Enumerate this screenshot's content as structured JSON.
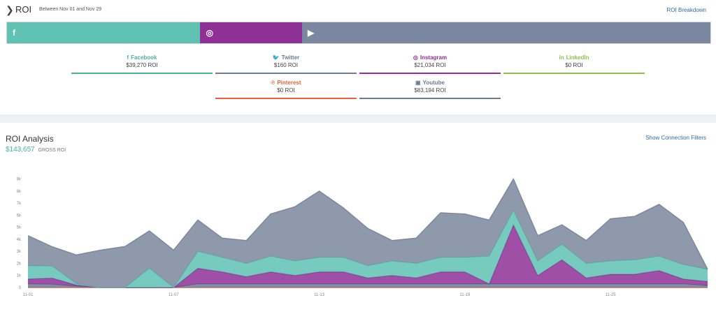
{
  "header": {
    "title": "ROI",
    "range": "Between Nov 01 and Nov 29",
    "breakdown_link": "ROI Breakdown"
  },
  "share_bar": [
    {
      "name": "facebook",
      "icon": "facebook-icon",
      "glyph": "f",
      "share": 0.2748,
      "color": "#5fc2b3"
    },
    {
      "name": "instagram",
      "icon": "instagram-icon",
      "glyph": "◎",
      "share": 0.1447,
      "color": "#8e3096"
    },
    {
      "name": "youtube",
      "icon": "youtube-icon",
      "glyph": "▶",
      "share": 0.5805,
      "color": "#7b879e"
    }
  ],
  "networks": [
    {
      "label": "Facebook",
      "value": "$39,270 ROI",
      "color": "#46b29a",
      "glyph": "f"
    },
    {
      "label": "Twitter",
      "value": "$160 ROI",
      "color": "#6b7a95",
      "glyph": "🐦"
    },
    {
      "label": "Instagram",
      "value": "$21,034 ROI",
      "color": "#8e3096",
      "glyph": "◎"
    },
    {
      "label": "LinkedIn",
      "value": "$0 ROI",
      "color": "#8fc14a",
      "glyph": "in"
    },
    {
      "label": "Pinterest",
      "value": "$0 ROI",
      "color": "#e9603b",
      "glyph": "℗"
    },
    {
      "label": "Youtube",
      "value": "$83,194 ROI",
      "color": "#6b7a95",
      "glyph": "▣"
    }
  ],
  "analysis": {
    "title": "ROI Analysis",
    "gross_value": "$143,657",
    "gross_label": "GROSS ROI",
    "filters_link": "Show Connection Filters"
  },
  "chart_data": {
    "type": "area",
    "stacked": true,
    "x": [
      "11-01",
      "11-02",
      "11-03",
      "11-04",
      "11-05",
      "11-06",
      "11-07",
      "11-08",
      "11-09",
      "11-10",
      "11-11",
      "11-12",
      "11-13",
      "11-14",
      "11-15",
      "11-16",
      "11-17",
      "11-18",
      "11-19",
      "11-20",
      "11-21",
      "11-22",
      "11-23",
      "11-24",
      "11-25",
      "11-26",
      "11-27",
      "11-28",
      "11-29"
    ],
    "x_tick_labels": [
      "11-01",
      "11-07",
      "11-13",
      "11-19",
      "11-25"
    ],
    "y_ticks": [
      0,
      1000,
      2000,
      3000,
      4000,
      5000,
      6000,
      7000,
      8000,
      9000
    ],
    "y_tick_labels": [
      "0",
      "1k",
      "2k",
      "3k",
      "4k",
      "5k",
      "6k",
      "7k",
      "8k",
      "9k"
    ],
    "ylim": [
      0,
      9500
    ],
    "series": [
      {
        "name": "Pinterest",
        "color": "#e9603b",
        "values": [
          0,
          0,
          0,
          0,
          0,
          0,
          0,
          0,
          0,
          0,
          0,
          0,
          0,
          0,
          0,
          0,
          0,
          0,
          0,
          0,
          0,
          0,
          0,
          0,
          0,
          0,
          0,
          0,
          0
        ]
      },
      {
        "name": "Twitter",
        "color": "#6b7a95",
        "values": [
          300,
          280,
          100,
          0,
          0,
          0,
          0,
          300,
          300,
          300,
          300,
          300,
          300,
          300,
          300,
          300,
          300,
          300,
          300,
          300,
          300,
          300,
          300,
          300,
          300,
          300,
          300,
          300,
          160
        ]
      },
      {
        "name": "Instagram",
        "color": "#8e3096",
        "values": [
          400,
          500,
          100,
          0,
          0,
          0,
          0,
          1300,
          1000,
          600,
          1000,
          700,
          1000,
          1000,
          500,
          700,
          500,
          1000,
          1000,
          0,
          4900,
          700,
          2000,
          500,
          800,
          800,
          1100,
          400,
          350
        ]
      },
      {
        "name": "Facebook",
        "color": "#5fc2b3",
        "values": [
          1100,
          1000,
          100,
          0,
          0,
          1600,
          0,
          1400,
          1200,
          1100,
          1300,
          1200,
          1200,
          1200,
          1000,
          1200,
          1200,
          1200,
          1200,
          2300,
          1200,
          1200,
          1300,
          1200,
          1100,
          1200,
          1200,
          1200,
          1000
        ]
      },
      {
        "name": "Youtube",
        "color": "#7b879e",
        "values": [
          2500,
          1600,
          2400,
          3100,
          3400,
          3100,
          3100,
          2600,
          1600,
          1900,
          3500,
          4500,
          5500,
          4100,
          3100,
          1700,
          2100,
          3700,
          3600,
          3000,
          2600,
          2100,
          1600,
          1900,
          3500,
          3600,
          4300,
          3500,
          0
        ]
      }
    ]
  }
}
